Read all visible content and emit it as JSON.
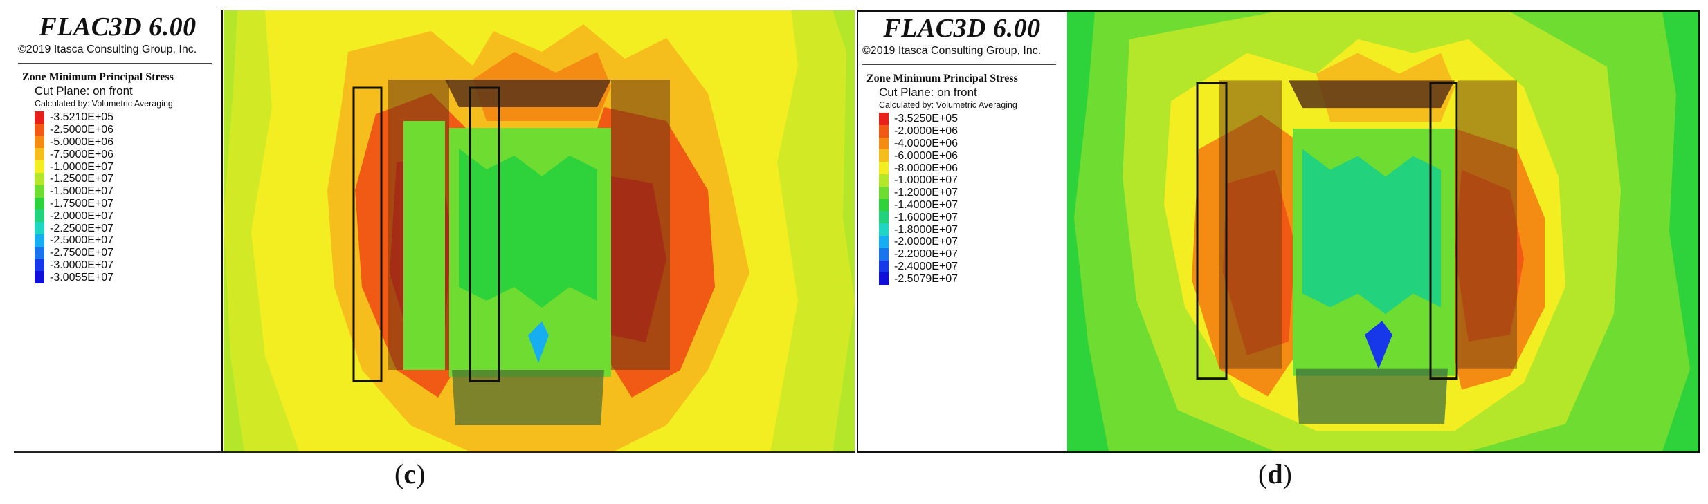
{
  "panels": [
    {
      "id": "c",
      "title": "FLAC3D 6.00",
      "copyright": "©2019 Itasca Consulting Group, Inc.",
      "quantity": "Zone Minimum Principal Stress",
      "cut_plane": "Cut Plane: on front",
      "calculated_by": "Calculated by: Volumetric Averaging",
      "caption": {
        "open": "(",
        "letter": "c",
        "close": ")"
      },
      "legend": [
        {
          "label": "-3.5210E+05",
          "color": "#e8201c"
        },
        {
          "label": "-2.5000E+06",
          "color": "#f05a14"
        },
        {
          "label": "-5.0000E+06",
          "color": "#f48c14"
        },
        {
          "label": "-7.5000E+06",
          "color": "#f6be1c"
        },
        {
          "label": "-1.0000E+07",
          "color": "#f2ee22"
        },
        {
          "label": "-1.2500E+07",
          "color": "#b4e62a"
        },
        {
          "label": "-1.5000E+07",
          "color": "#6edc30"
        },
        {
          "label": "-1.7500E+07",
          "color": "#2ed23a"
        },
        {
          "label": "-2.0000E+07",
          "color": "#22d27c"
        },
        {
          "label": "-2.2500E+07",
          "color": "#1ed6c2"
        },
        {
          "label": "-2.5000E+07",
          "color": "#16aef0"
        },
        {
          "label": "-2.7500E+07",
          "color": "#1a74ee"
        },
        {
          "label": "-3.0000E+07",
          "color": "#1638e8"
        },
        {
          "label": "-3.0055E+07",
          "color": "#1010d8"
        }
      ]
    },
    {
      "id": "d",
      "title": "FLAC3D 6.00",
      "copyright": "©2019 Itasca Consulting Group, Inc.",
      "quantity": "Zone Minimum Principal Stress",
      "cut_plane": "Cut Plane: on front",
      "calculated_by": "Calculated by: Volumetric Averaging",
      "caption": {
        "open": "(",
        "letter": "d",
        "close": ")"
      },
      "legend": [
        {
          "label": "-3.5250E+05",
          "color": "#e8201c"
        },
        {
          "label": "-2.0000E+06",
          "color": "#f05a14"
        },
        {
          "label": "-4.0000E+06",
          "color": "#f48c14"
        },
        {
          "label": "-6.0000E+06",
          "color": "#f6be1c"
        },
        {
          "label": "-8.0000E+06",
          "color": "#f2ee22"
        },
        {
          "label": "-1.0000E+07",
          "color": "#b4e62a"
        },
        {
          "label": "-1.2000E+07",
          "color": "#6edc30"
        },
        {
          "label": "-1.4000E+07",
          "color": "#2ed23a"
        },
        {
          "label": "-1.6000E+07",
          "color": "#22d27c"
        },
        {
          "label": "-1.8000E+07",
          "color": "#1ed6c2"
        },
        {
          "label": "-2.0000E+07",
          "color": "#16aef0"
        },
        {
          "label": "-2.2000E+07",
          "color": "#1a74ee"
        },
        {
          "label": "-2.4000E+07",
          "color": "#1638e8"
        },
        {
          "label": "-2.5079E+07",
          "color": "#1010d8"
        }
      ]
    }
  ]
}
